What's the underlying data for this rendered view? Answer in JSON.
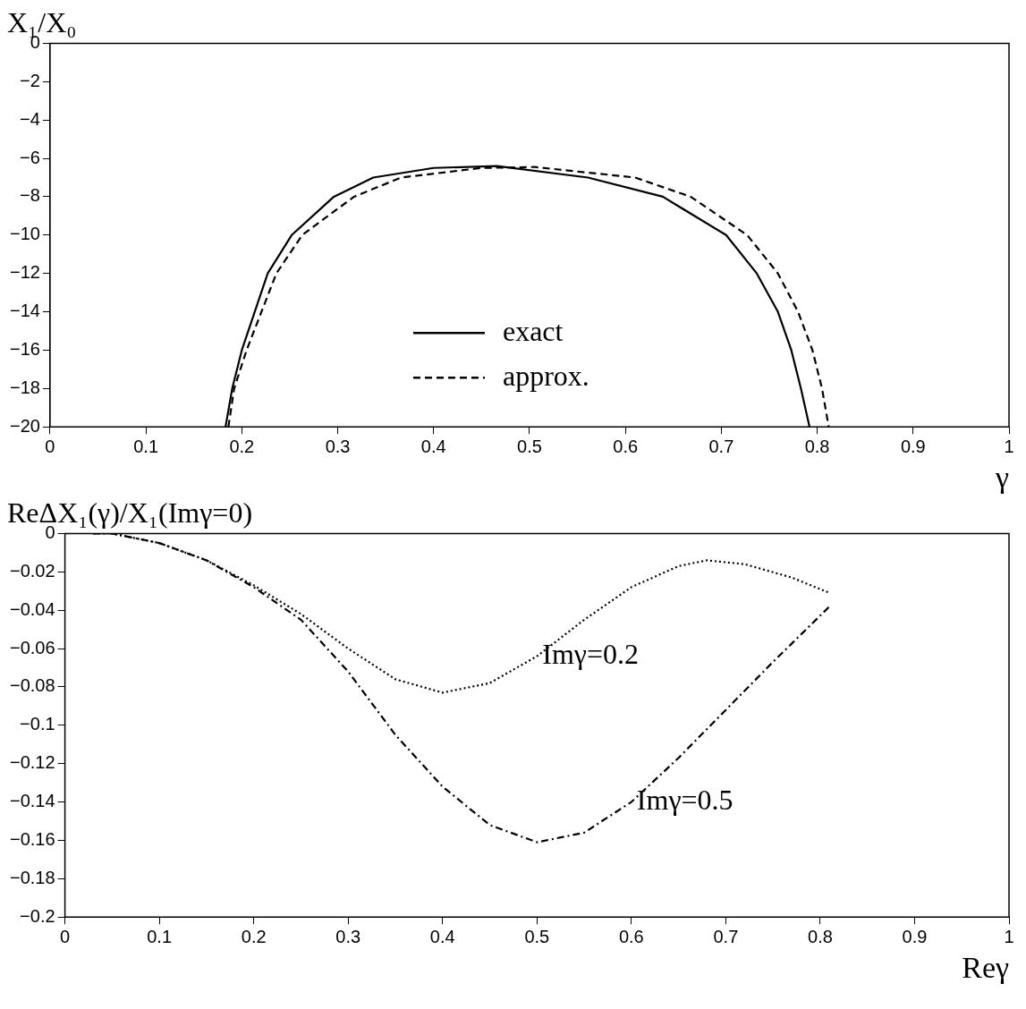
{
  "chart_data": [
    {
      "type": "line",
      "xlabel": "γ",
      "ylabel": "X₁/X₀",
      "xlim": [
        0,
        1
      ],
      "ylim": [
        -20,
        0
      ],
      "xticks": [
        0,
        0.1,
        0.2,
        0.3,
        0.4,
        0.5,
        0.6,
        0.7,
        0.8,
        0.9,
        1
      ],
      "yticks": [
        0,
        -2,
        -4,
        -6,
        -8,
        -10,
        -12,
        -14,
        -16,
        -18,
        -20
      ],
      "grid": false,
      "legend": "bottom",
      "marker": "none",
      "series": [
        {
          "name": "exact",
          "color": "#000000",
          "line_style": "solid",
          "x": [
            0.183,
            0.19,
            0.2,
            0.227,
            0.252,
            0.296,
            0.337,
            0.4,
            0.466,
            0.561,
            0.639,
            0.705,
            0.737,
            0.759,
            0.773,
            0.783,
            0.792
          ],
          "values": [
            -20,
            -18,
            -16,
            -12,
            -10,
            -8,
            -7,
            -6.5,
            -6.4,
            -7,
            -8,
            -10,
            -12,
            -14,
            -16,
            -18,
            -20
          ]
        },
        {
          "name": "approx.",
          "color": "#000000",
          "line_style": "dashed",
          "x": [
            0.186,
            0.192,
            0.205,
            0.236,
            0.263,
            0.317,
            0.366,
            0.45,
            0.505,
            0.61,
            0.668,
            0.727,
            0.759,
            0.78,
            0.795,
            0.805,
            0.812
          ],
          "values": [
            -20,
            -18,
            -16,
            -12,
            -10,
            -8,
            -7,
            -6.5,
            -6.45,
            -7,
            -8,
            -10,
            -12,
            -14,
            -16,
            -18,
            -20
          ]
        }
      ]
    },
    {
      "type": "line",
      "xlabel": "Reγ",
      "ylabel": "ReΔX₁(γ)/X₁(Imγ=0)",
      "xlim": [
        0,
        1
      ],
      "ylim": [
        -0.2,
        0
      ],
      "xticks": [
        0,
        0.1,
        0.2,
        0.3,
        0.4,
        0.5,
        0.6,
        0.7,
        0.8,
        0.9,
        1
      ],
      "yticks": [
        0,
        -0.02,
        -0.04,
        -0.06,
        -0.08,
        -0.1,
        -0.12,
        -0.14,
        -0.16,
        -0.18,
        -0.2
      ],
      "grid": false,
      "legend": false,
      "marker": "none",
      "series": [
        {
          "name": "Imγ=0.2",
          "color": "#000000",
          "line_style": "dotted",
          "x": [
            0.03,
            0.05,
            0.1,
            0.15,
            0.2,
            0.25,
            0.3,
            0.35,
            0.4,
            0.45,
            0.5,
            0.55,
            0.6,
            0.65,
            0.68,
            0.72,
            0.77,
            0.81
          ],
          "values": [
            0,
            0,
            -0.005,
            -0.014,
            -0.027,
            -0.042,
            -0.06,
            -0.076,
            -0.083,
            -0.078,
            -0.064,
            -0.045,
            -0.028,
            -0.017,
            -0.014,
            -0.016,
            -0.023,
            -0.031
          ]
        },
        {
          "name": "Imγ=0.5",
          "color": "#000000",
          "line_style": "dashdot",
          "x": [
            0.03,
            0.05,
            0.1,
            0.15,
            0.2,
            0.25,
            0.3,
            0.35,
            0.4,
            0.45,
            0.5,
            0.55,
            0.6,
            0.65,
            0.7,
            0.75,
            0.81
          ],
          "values": [
            0,
            0,
            -0.005,
            -0.014,
            -0.028,
            -0.045,
            -0.072,
            -0.105,
            -0.132,
            -0.152,
            -0.161,
            -0.156,
            -0.14,
            -0.117,
            -0.092,
            -0.067,
            -0.038
          ]
        }
      ]
    }
  ]
}
